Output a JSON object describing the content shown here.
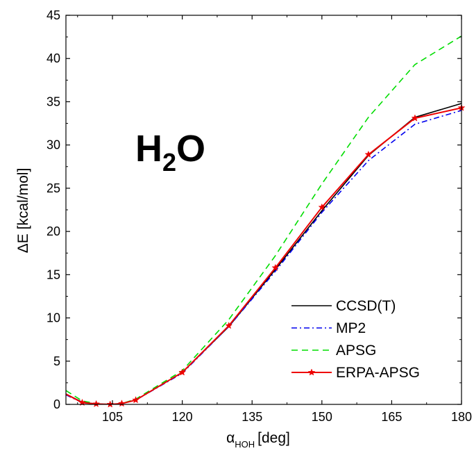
{
  "chart_data": {
    "type": "line",
    "xlabel_symbol": "α",
    "xlabel_sub": "HOH",
    "xlabel_unit": "[deg]",
    "ylabel": "ΔE [kcal/mol]",
    "annotation": {
      "main": "H",
      "sub": "2",
      "tail": "O"
    },
    "xlim": [
      95,
      180
    ],
    "ylim": [
      0,
      45
    ],
    "xticks": [
      105,
      120,
      135,
      150,
      165,
      180
    ],
    "yticks": [
      0,
      5,
      10,
      15,
      20,
      25,
      30,
      35,
      40,
      45
    ],
    "grid": false,
    "legend_position": "bottom-right",
    "series": [
      {
        "name": "CCSD(T)",
        "color": "#000000",
        "dash": "solid",
        "marker": "none",
        "x": [
          95,
          98.5,
          101.5,
          104.5,
          107,
          110,
          120,
          130,
          140,
          150,
          160,
          170,
          180
        ],
        "y": [
          1.2,
          0.25,
          0.05,
          0.0,
          0.1,
          0.5,
          3.7,
          9.0,
          15.6,
          22.4,
          28.8,
          33.2,
          34.8
        ]
      },
      {
        "name": "MP2",
        "color": "#0000ee",
        "dash": "dashdot",
        "marker": "none",
        "x": [
          95,
          98.5,
          101.5,
          104.5,
          107,
          110,
          120,
          130,
          140,
          150,
          160,
          170,
          180
        ],
        "y": [
          1.1,
          0.2,
          0.05,
          0.0,
          0.1,
          0.5,
          3.6,
          9.0,
          15.4,
          22.2,
          28.2,
          32.4,
          34.0
        ]
      },
      {
        "name": "APSG",
        "color": "#00dd00",
        "dash": "dashed",
        "marker": "none",
        "x": [
          95,
          98.5,
          101.5,
          104.5,
          107,
          110,
          120,
          130,
          140,
          150,
          160,
          170,
          180
        ],
        "y": [
          1.6,
          0.4,
          0.1,
          0.0,
          0.1,
          0.6,
          3.9,
          9.8,
          17.2,
          25.5,
          33.2,
          39.3,
          42.6
        ]
      },
      {
        "name": "ERPA-APSG",
        "color": "#ee0000",
        "dash": "solid",
        "marker": "star",
        "x": [
          95,
          98.5,
          101.5,
          104.5,
          107,
          110,
          120,
          130,
          140,
          150,
          160,
          170,
          180
        ],
        "y": [
          1.2,
          0.2,
          0.05,
          0.0,
          0.1,
          0.5,
          3.7,
          9.1,
          15.8,
          22.8,
          28.9,
          33.1,
          34.3
        ]
      }
    ]
  }
}
